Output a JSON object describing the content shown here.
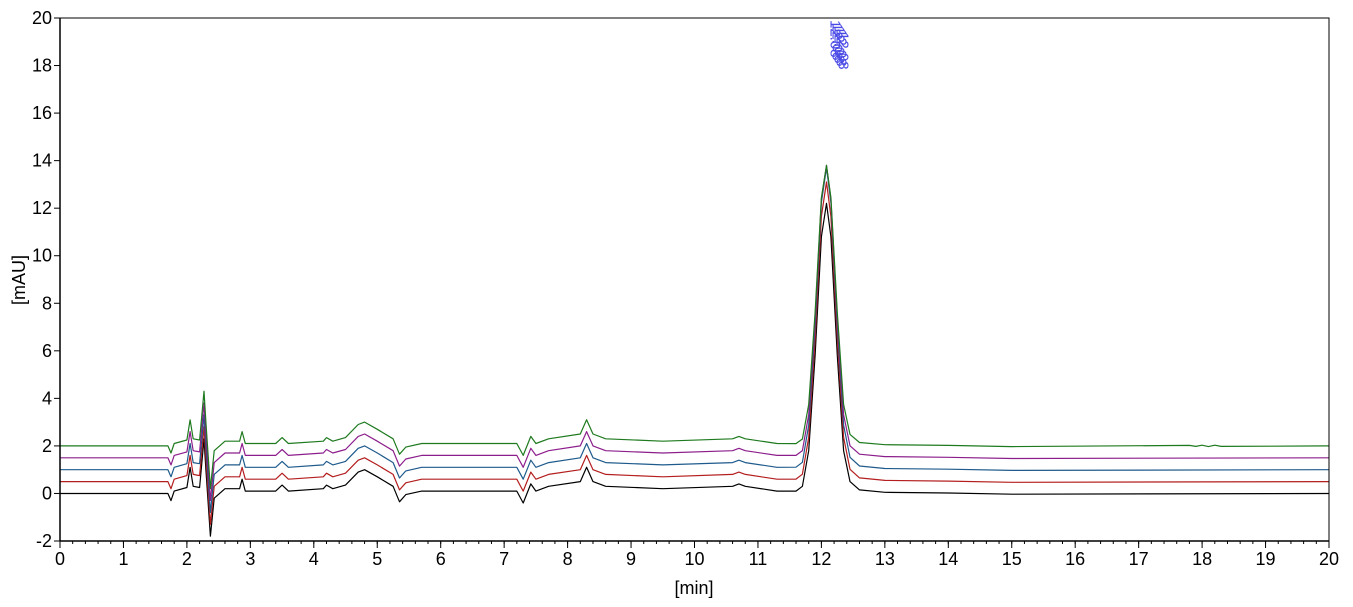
{
  "chart_data": {
    "type": "line",
    "title": "",
    "xlabel": "[min]",
    "ylabel": "[mAU]",
    "xlim": [
      0,
      20
    ],
    "ylim": [
      -2,
      20
    ],
    "x_ticks": [
      0,
      1,
      2,
      3,
      4,
      5,
      6,
      7,
      8,
      9,
      10,
      11,
      12,
      13,
      14,
      15,
      16,
      17,
      18,
      19,
      20
    ],
    "y_ticks": [
      -2,
      0,
      2,
      4,
      6,
      8,
      10,
      12,
      14,
      16,
      18,
      20
    ],
    "x_minor_step": 0.2,
    "grid": false,
    "legend": "none",
    "peak_annotation": {
      "x": 12.1,
      "text": "12.08"
    },
    "series": [
      {
        "color": "#000000",
        "baseline": 0.0,
        "main_peak_height": 12.2,
        "points": [
          [
            0,
            0
          ],
          [
            1.7,
            0
          ],
          [
            1.75,
            -0.3
          ],
          [
            1.8,
            0.1
          ],
          [
            2.0,
            0.25
          ],
          [
            2.05,
            1.1
          ],
          [
            2.1,
            0.3
          ],
          [
            2.2,
            0.25
          ],
          [
            2.27,
            2.3
          ],
          [
            2.3,
            1.0
          ],
          [
            2.37,
            -1.8
          ],
          [
            2.43,
            -0.2
          ],
          [
            2.6,
            0.2
          ],
          [
            2.83,
            0.2
          ],
          [
            2.87,
            0.6
          ],
          [
            2.92,
            0.1
          ],
          [
            3.4,
            0.1
          ],
          [
            3.5,
            0.35
          ],
          [
            3.6,
            0.1
          ],
          [
            4.15,
            0.2
          ],
          [
            4.2,
            0.35
          ],
          [
            4.3,
            0.2
          ],
          [
            4.5,
            0.35
          ],
          [
            4.7,
            0.9
          ],
          [
            4.8,
            1.0
          ],
          [
            5.0,
            0.7
          ],
          [
            5.25,
            0.3
          ],
          [
            5.35,
            -0.35
          ],
          [
            5.45,
            -0.05
          ],
          [
            5.7,
            0.1
          ],
          [
            7.2,
            0.1
          ],
          [
            7.3,
            -0.4
          ],
          [
            7.42,
            0.4
          ],
          [
            7.5,
            0.1
          ],
          [
            7.7,
            0.3
          ],
          [
            8.2,
            0.5
          ],
          [
            8.3,
            1.1
          ],
          [
            8.4,
            0.5
          ],
          [
            8.6,
            0.3
          ],
          [
            9.5,
            0.2
          ],
          [
            10.6,
            0.3
          ],
          [
            10.7,
            0.4
          ],
          [
            10.8,
            0.3
          ],
          [
            11.3,
            0.1
          ],
          [
            11.6,
            0.1
          ],
          [
            11.7,
            0.3
          ],
          [
            11.8,
            1.8
          ],
          [
            11.9,
            5.8
          ],
          [
            12.0,
            10.8
          ],
          [
            12.08,
            12.2
          ],
          [
            12.15,
            10.8
          ],
          [
            12.25,
            5.8
          ],
          [
            12.35,
            1.8
          ],
          [
            12.45,
            0.5
          ],
          [
            12.6,
            0.15
          ],
          [
            13.0,
            0.05
          ],
          [
            14.0,
            0.02
          ],
          [
            15.0,
            -0.03
          ],
          [
            20,
            0
          ]
        ]
      },
      {
        "color": "#b41e1e",
        "baseline": 0.5,
        "main_peak_height": 12.6,
        "points": [
          [
            0,
            0
          ],
          [
            1.7,
            0
          ],
          [
            1.75,
            -0.3
          ],
          [
            1.8,
            0.1
          ],
          [
            2.0,
            0.25
          ],
          [
            2.05,
            1.1
          ],
          [
            2.1,
            0.3
          ],
          [
            2.2,
            0.25
          ],
          [
            2.27,
            2.3
          ],
          [
            2.3,
            1.0
          ],
          [
            2.37,
            -1.8
          ],
          [
            2.43,
            -0.2
          ],
          [
            2.6,
            0.2
          ],
          [
            2.83,
            0.2
          ],
          [
            2.87,
            0.6
          ],
          [
            2.92,
            0.1
          ],
          [
            3.4,
            0.1
          ],
          [
            3.5,
            0.35
          ],
          [
            3.6,
            0.1
          ],
          [
            4.15,
            0.2
          ],
          [
            4.2,
            0.35
          ],
          [
            4.3,
            0.2
          ],
          [
            4.5,
            0.35
          ],
          [
            4.7,
            0.9
          ],
          [
            4.8,
            1.0
          ],
          [
            5.0,
            0.7
          ],
          [
            5.25,
            0.3
          ],
          [
            5.35,
            -0.35
          ],
          [
            5.45,
            -0.05
          ],
          [
            5.7,
            0.1
          ],
          [
            7.2,
            0.1
          ],
          [
            7.3,
            -0.4
          ],
          [
            7.42,
            0.4
          ],
          [
            7.5,
            0.1
          ],
          [
            7.7,
            0.3
          ],
          [
            8.2,
            0.5
          ],
          [
            8.3,
            1.1
          ],
          [
            8.4,
            0.5
          ],
          [
            8.6,
            0.3
          ],
          [
            9.5,
            0.2
          ],
          [
            10.6,
            0.3
          ],
          [
            10.7,
            0.4
          ],
          [
            10.8,
            0.3
          ],
          [
            11.3,
            0.1
          ],
          [
            11.6,
            0.1
          ],
          [
            11.7,
            0.3
          ],
          [
            11.8,
            1.8
          ],
          [
            11.9,
            5.8
          ],
          [
            12.0,
            10.8
          ],
          [
            12.08,
            12.2
          ],
          [
            12.15,
            10.8
          ],
          [
            12.25,
            5.8
          ],
          [
            12.35,
            1.8
          ],
          [
            12.45,
            0.5
          ],
          [
            12.6,
            0.15
          ],
          [
            13.0,
            0.05
          ],
          [
            14.0,
            0.02
          ],
          [
            15.0,
            -0.03
          ],
          [
            20,
            0
          ]
        ]
      },
      {
        "color": "#1e5a8c",
        "baseline": 1.0,
        "main_peak_height": 12.7,
        "points": [
          [
            0,
            0
          ],
          [
            1.7,
            0
          ],
          [
            1.75,
            -0.3
          ],
          [
            1.8,
            0.1
          ],
          [
            2.0,
            0.25
          ],
          [
            2.05,
            1.1
          ],
          [
            2.1,
            0.3
          ],
          [
            2.2,
            0.25
          ],
          [
            2.27,
            2.3
          ],
          [
            2.3,
            1.0
          ],
          [
            2.37,
            -1.8
          ],
          [
            2.43,
            -0.2
          ],
          [
            2.6,
            0.2
          ],
          [
            2.83,
            0.2
          ],
          [
            2.87,
            0.6
          ],
          [
            2.92,
            0.1
          ],
          [
            3.4,
            0.1
          ],
          [
            3.5,
            0.35
          ],
          [
            3.6,
            0.1
          ],
          [
            4.15,
            0.2
          ],
          [
            4.2,
            0.35
          ],
          [
            4.3,
            0.2
          ],
          [
            4.5,
            0.35
          ],
          [
            4.7,
            0.9
          ],
          [
            4.8,
            1.0
          ],
          [
            5.0,
            0.7
          ],
          [
            5.25,
            0.3
          ],
          [
            5.35,
            -0.35
          ],
          [
            5.45,
            -0.05
          ],
          [
            5.7,
            0.1
          ],
          [
            7.2,
            0.1
          ],
          [
            7.3,
            -0.4
          ],
          [
            7.42,
            0.4
          ],
          [
            7.5,
            0.1
          ],
          [
            7.7,
            0.3
          ],
          [
            8.2,
            0.5
          ],
          [
            8.3,
            1.1
          ],
          [
            8.4,
            0.5
          ],
          [
            8.6,
            0.3
          ],
          [
            9.5,
            0.2
          ],
          [
            10.6,
            0.3
          ],
          [
            10.7,
            0.4
          ],
          [
            10.8,
            0.3
          ],
          [
            11.3,
            0.1
          ],
          [
            11.6,
            0.1
          ],
          [
            11.7,
            0.3
          ],
          [
            11.8,
            1.8
          ],
          [
            11.9,
            5.8
          ],
          [
            12.0,
            10.8
          ],
          [
            12.08,
            12.2
          ],
          [
            12.15,
            10.8
          ],
          [
            12.25,
            5.8
          ],
          [
            12.35,
            1.8
          ],
          [
            12.45,
            0.5
          ],
          [
            12.6,
            0.15
          ],
          [
            13.0,
            0.05
          ],
          [
            14.0,
            0.02
          ],
          [
            15.0,
            -0.03
          ],
          [
            20,
            0
          ]
        ]
      },
      {
        "color": "#8c1e8c",
        "baseline": 1.5,
        "main_peak_height": 12.3,
        "points": [
          [
            0,
            0
          ],
          [
            1.7,
            0
          ],
          [
            1.75,
            -0.3
          ],
          [
            1.8,
            0.1
          ],
          [
            2.0,
            0.25
          ],
          [
            2.05,
            1.1
          ],
          [
            2.1,
            0.3
          ],
          [
            2.2,
            0.25
          ],
          [
            2.27,
            2.3
          ],
          [
            2.3,
            1.0
          ],
          [
            2.37,
            -1.8
          ],
          [
            2.43,
            -0.2
          ],
          [
            2.6,
            0.2
          ],
          [
            2.83,
            0.2
          ],
          [
            2.87,
            0.6
          ],
          [
            2.92,
            0.1
          ],
          [
            3.4,
            0.1
          ],
          [
            3.5,
            0.35
          ],
          [
            3.6,
            0.1
          ],
          [
            4.15,
            0.2
          ],
          [
            4.2,
            0.35
          ],
          [
            4.3,
            0.2
          ],
          [
            4.5,
            0.35
          ],
          [
            4.7,
            0.9
          ],
          [
            4.8,
            1.0
          ],
          [
            5.0,
            0.7
          ],
          [
            5.25,
            0.3
          ],
          [
            5.35,
            -0.35
          ],
          [
            5.45,
            -0.05
          ],
          [
            5.7,
            0.1
          ],
          [
            7.2,
            0.1
          ],
          [
            7.3,
            -0.4
          ],
          [
            7.42,
            0.4
          ],
          [
            7.5,
            0.1
          ],
          [
            7.7,
            0.3
          ],
          [
            8.2,
            0.5
          ],
          [
            8.3,
            1.1
          ],
          [
            8.4,
            0.5
          ],
          [
            8.6,
            0.3
          ],
          [
            9.5,
            0.2
          ],
          [
            10.6,
            0.3
          ],
          [
            10.7,
            0.4
          ],
          [
            10.8,
            0.3
          ],
          [
            11.3,
            0.1
          ],
          [
            11.6,
            0.1
          ],
          [
            11.7,
            0.3
          ],
          [
            11.8,
            1.8
          ],
          [
            11.9,
            5.8
          ],
          [
            12.0,
            10.8
          ],
          [
            12.08,
            12.2
          ],
          [
            12.15,
            10.8
          ],
          [
            12.25,
            5.8
          ],
          [
            12.35,
            1.8
          ],
          [
            12.45,
            0.5
          ],
          [
            12.6,
            0.15
          ],
          [
            13.0,
            0.05
          ],
          [
            14.0,
            0.02
          ],
          [
            15.0,
            -0.03
          ],
          [
            20,
            0
          ]
        ]
      },
      {
        "color": "#1e7a1e",
        "baseline": 2.0,
        "main_peak_height": 11.8,
        "points": [
          [
            0,
            0
          ],
          [
            1.7,
            0
          ],
          [
            1.75,
            -0.3
          ],
          [
            1.8,
            0.1
          ],
          [
            2.0,
            0.25
          ],
          [
            2.05,
            1.1
          ],
          [
            2.1,
            0.3
          ],
          [
            2.2,
            0.25
          ],
          [
            2.27,
            2.3
          ],
          [
            2.3,
            1.0
          ],
          [
            2.37,
            -1.8
          ],
          [
            2.43,
            -0.2
          ],
          [
            2.6,
            0.2
          ],
          [
            2.83,
            0.2
          ],
          [
            2.87,
            0.6
          ],
          [
            2.92,
            0.1
          ],
          [
            3.4,
            0.1
          ],
          [
            3.5,
            0.35
          ],
          [
            3.6,
            0.1
          ],
          [
            4.15,
            0.2
          ],
          [
            4.2,
            0.35
          ],
          [
            4.3,
            0.2
          ],
          [
            4.5,
            0.35
          ],
          [
            4.7,
            0.9
          ],
          [
            4.8,
            1.0
          ],
          [
            5.0,
            0.7
          ],
          [
            5.25,
            0.3
          ],
          [
            5.35,
            -0.35
          ],
          [
            5.45,
            -0.05
          ],
          [
            5.7,
            0.1
          ],
          [
            7.2,
            0.1
          ],
          [
            7.3,
            -0.4
          ],
          [
            7.42,
            0.4
          ],
          [
            7.5,
            0.1
          ],
          [
            7.7,
            0.3
          ],
          [
            8.2,
            0.5
          ],
          [
            8.3,
            1.1
          ],
          [
            8.4,
            0.5
          ],
          [
            8.6,
            0.3
          ],
          [
            9.5,
            0.2
          ],
          [
            10.6,
            0.3
          ],
          [
            10.7,
            0.4
          ],
          [
            10.8,
            0.3
          ],
          [
            11.3,
            0.1
          ],
          [
            11.6,
            0.1
          ],
          [
            11.7,
            0.3
          ],
          [
            11.8,
            1.8
          ],
          [
            11.9,
            5.8
          ],
          [
            12.0,
            10.8
          ],
          [
            12.08,
            12.2
          ],
          [
            12.15,
            10.8
          ],
          [
            12.25,
            5.8
          ],
          [
            12.35,
            1.8
          ],
          [
            12.45,
            0.5
          ],
          [
            12.6,
            0.15
          ],
          [
            13.0,
            0.05
          ],
          [
            14.0,
            0.02
          ],
          [
            15.0,
            -0.03
          ],
          [
            17.8,
            0.02
          ],
          [
            17.9,
            -0.02
          ],
          [
            18.0,
            0.03
          ],
          [
            18.1,
            -0.03
          ],
          [
            18.2,
            0.03
          ],
          [
            18.3,
            -0.02
          ],
          [
            20,
            0
          ]
        ]
      }
    ]
  }
}
